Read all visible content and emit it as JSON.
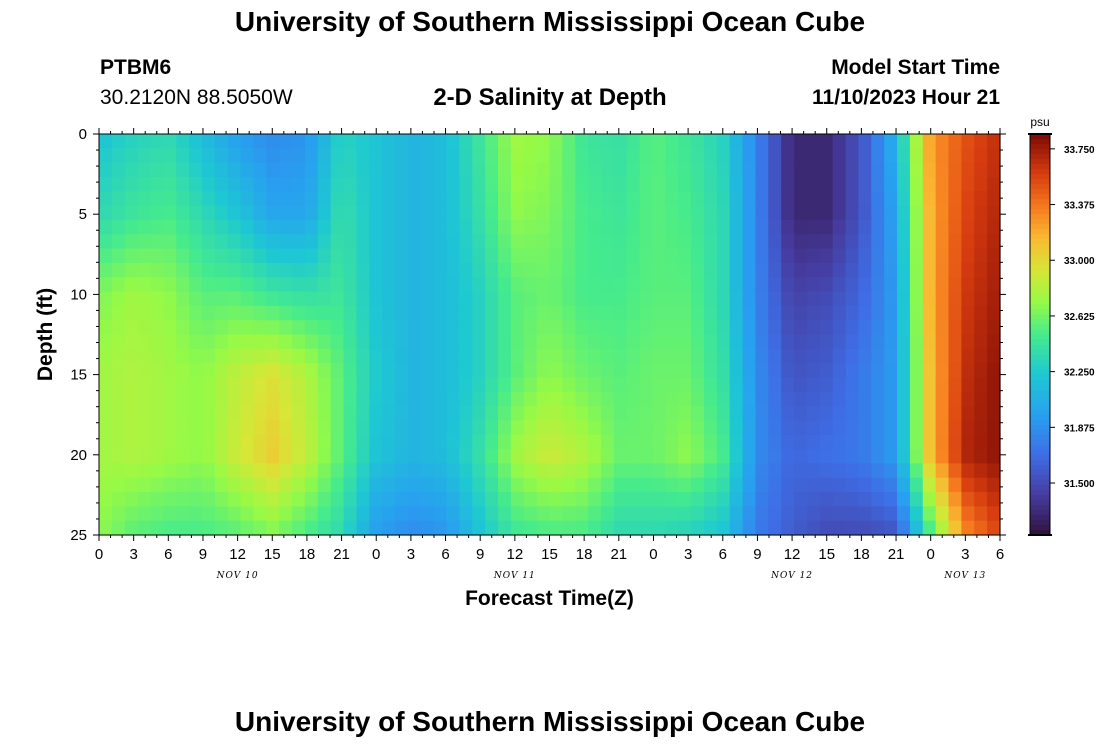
{
  "header": {
    "title": "University of Southern Mississippi Ocean Cube",
    "station": "PTBM6",
    "coords": "30.2120N  88.5050W",
    "subtitle": "2-D Salinity at Depth",
    "model_start_label": "Model Start Time",
    "model_start_value": "11/10/2023 Hour 21"
  },
  "footer": {
    "title": "University of Southern Mississippi Ocean Cube"
  },
  "chart_data": {
    "type": "heatmap",
    "xlabel": "Forecast Time(Z)",
    "ylabel": "Depth (ft)",
    "ylim": [
      0,
      25
    ],
    "y_ticks": [
      0,
      5,
      10,
      15,
      20,
      25
    ],
    "x_start_hour": 0,
    "x_end_hour": 78,
    "x_tick_labels": [
      "0",
      "3",
      "6",
      "9",
      "12",
      "15",
      "18",
      "21",
      "0",
      "3",
      "6",
      "9",
      "12",
      "15",
      "18",
      "21",
      "0",
      "3",
      "6",
      "9",
      "12",
      "15",
      "18",
      "21",
      "0",
      "3",
      "6"
    ],
    "day_labels": [
      {
        "label": "NOV 10",
        "hour": 12
      },
      {
        "label": "NOV 11",
        "hour": 36
      },
      {
        "label": "NOV 12",
        "hour": 60
      },
      {
        "label": "NOV 13",
        "hour": 75
      }
    ],
    "colorbar": {
      "unit": "psu",
      "min": 31.15,
      "max": 33.85,
      "ticks": [
        "33.750",
        "33.375",
        "33.000",
        "32.625",
        "32.250",
        "31.875",
        "31.500"
      ],
      "tick_values": [
        33.75,
        33.375,
        33.0,
        32.625,
        32.25,
        31.875,
        31.5
      ]
    },
    "salinity_columns": [
      {
        "hour": 0,
        "depth": [
          0,
          5,
          10,
          15,
          20,
          25
        ],
        "psu": [
          32.2,
          32.35,
          32.65,
          32.75,
          32.75,
          32.7
        ]
      },
      {
        "hour": 3,
        "depth": [
          0,
          5,
          10,
          15,
          20,
          25
        ],
        "psu": [
          32.3,
          32.45,
          32.75,
          32.8,
          32.8,
          32.55
        ]
      },
      {
        "hour": 6,
        "depth": [
          0,
          5,
          10,
          15,
          20,
          25
        ],
        "psu": [
          32.35,
          32.5,
          32.7,
          32.75,
          32.75,
          32.5
        ]
      },
      {
        "hour": 9,
        "depth": [
          0,
          5,
          10,
          15,
          20,
          25
        ],
        "psu": [
          32.15,
          32.35,
          32.55,
          32.7,
          32.7,
          32.5
        ]
      },
      {
        "hour": 12,
        "depth": [
          0,
          5,
          10,
          15,
          20,
          25
        ],
        "psu": [
          31.95,
          32.2,
          32.55,
          32.85,
          32.9,
          32.55
        ]
      },
      {
        "hour": 15,
        "depth": [
          0,
          5,
          10,
          15,
          20,
          25
        ],
        "psu": [
          31.85,
          32.0,
          32.45,
          32.95,
          33.05,
          32.65
        ]
      },
      {
        "hour": 18,
        "depth": [
          0,
          5,
          10,
          15,
          20,
          25
        ],
        "psu": [
          31.9,
          32.0,
          32.4,
          32.8,
          32.85,
          32.5
        ]
      },
      {
        "hour": 21,
        "depth": [
          0,
          5,
          10,
          15,
          20,
          25
        ],
        "psu": [
          32.3,
          32.4,
          32.45,
          32.55,
          32.55,
          32.35
        ]
      },
      {
        "hour": 24,
        "depth": [
          0,
          5,
          10,
          15,
          20,
          25
        ],
        "psu": [
          32.2,
          32.2,
          32.2,
          32.25,
          32.2,
          31.95
        ]
      },
      {
        "hour": 27,
        "depth": [
          0,
          5,
          10,
          15,
          20,
          25
        ],
        "psu": [
          32.1,
          32.1,
          32.1,
          32.1,
          32.1,
          31.85
        ]
      },
      {
        "hour": 30,
        "depth": [
          0,
          5,
          10,
          15,
          20,
          25
        ],
        "psu": [
          32.15,
          32.15,
          32.15,
          32.15,
          32.15,
          31.9
        ]
      },
      {
        "hour": 33,
        "depth": [
          0,
          5,
          10,
          15,
          20,
          25
        ],
        "psu": [
          32.45,
          32.4,
          32.3,
          32.3,
          32.4,
          32.2
        ]
      },
      {
        "hour": 36,
        "depth": [
          0,
          5,
          10,
          15,
          20,
          25
        ],
        "psu": [
          32.75,
          32.7,
          32.55,
          32.55,
          32.75,
          32.45
        ]
      },
      {
        "hour": 39,
        "depth": [
          0,
          5,
          10,
          15,
          20,
          25
        ],
        "psu": [
          32.7,
          32.65,
          32.6,
          32.7,
          32.9,
          32.5
        ]
      },
      {
        "hour": 42,
        "depth": [
          0,
          5,
          10,
          15,
          20,
          25
        ],
        "psu": [
          32.45,
          32.5,
          32.5,
          32.6,
          32.8,
          32.5
        ]
      },
      {
        "hour": 45,
        "depth": [
          0,
          5,
          10,
          15,
          20,
          25
        ],
        "psu": [
          32.4,
          32.45,
          32.5,
          32.55,
          32.6,
          32.35
        ]
      },
      {
        "hour": 48,
        "depth": [
          0,
          5,
          10,
          15,
          20,
          25
        ],
        "psu": [
          32.55,
          32.55,
          32.55,
          32.6,
          32.6,
          32.35
        ]
      },
      {
        "hour": 51,
        "depth": [
          0,
          5,
          10,
          15,
          20,
          25
        ],
        "psu": [
          32.45,
          32.5,
          32.55,
          32.6,
          32.7,
          32.3
        ]
      },
      {
        "hour": 54,
        "depth": [
          0,
          5,
          10,
          15,
          20,
          25
        ],
        "psu": [
          32.3,
          32.35,
          32.35,
          32.4,
          32.5,
          32.2
        ]
      },
      {
        "hour": 57,
        "depth": [
          0,
          5,
          10,
          15,
          20,
          25
        ],
        "psu": [
          31.8,
          31.8,
          31.8,
          31.85,
          31.85,
          31.75
        ]
      },
      {
        "hour": 60,
        "depth": [
          0,
          5,
          10,
          15,
          20,
          25
        ],
        "psu": [
          31.3,
          31.3,
          31.45,
          31.55,
          31.65,
          31.6
        ]
      },
      {
        "hour": 63,
        "depth": [
          0,
          5,
          10,
          15,
          20,
          25
        ],
        "psu": [
          31.3,
          31.3,
          31.5,
          31.6,
          31.7,
          31.5
        ]
      },
      {
        "hour": 66,
        "depth": [
          0,
          5,
          10,
          15,
          20,
          25
        ],
        "psu": [
          31.55,
          31.55,
          31.65,
          31.75,
          31.75,
          31.5
        ]
      },
      {
        "hour": 69,
        "depth": [
          0,
          5,
          10,
          15,
          20,
          25
        ],
        "psu": [
          32.1,
          32.0,
          31.95,
          31.95,
          31.95,
          31.55
        ]
      },
      {
        "hour": 72,
        "depth": [
          0,
          5,
          10,
          15,
          20,
          25
        ],
        "psu": [
          33.25,
          33.2,
          33.2,
          33.15,
          33.15,
          32.5
        ]
      },
      {
        "hour": 75,
        "depth": [
          0,
          5,
          10,
          15,
          20,
          25
        ],
        "psu": [
          33.5,
          33.55,
          33.6,
          33.65,
          33.7,
          33.3
        ]
      },
      {
        "hour": 78,
        "depth": [
          0,
          5,
          10,
          15,
          20,
          25
        ],
        "psu": [
          33.65,
          33.7,
          33.75,
          33.8,
          33.8,
          33.55
        ]
      }
    ]
  }
}
